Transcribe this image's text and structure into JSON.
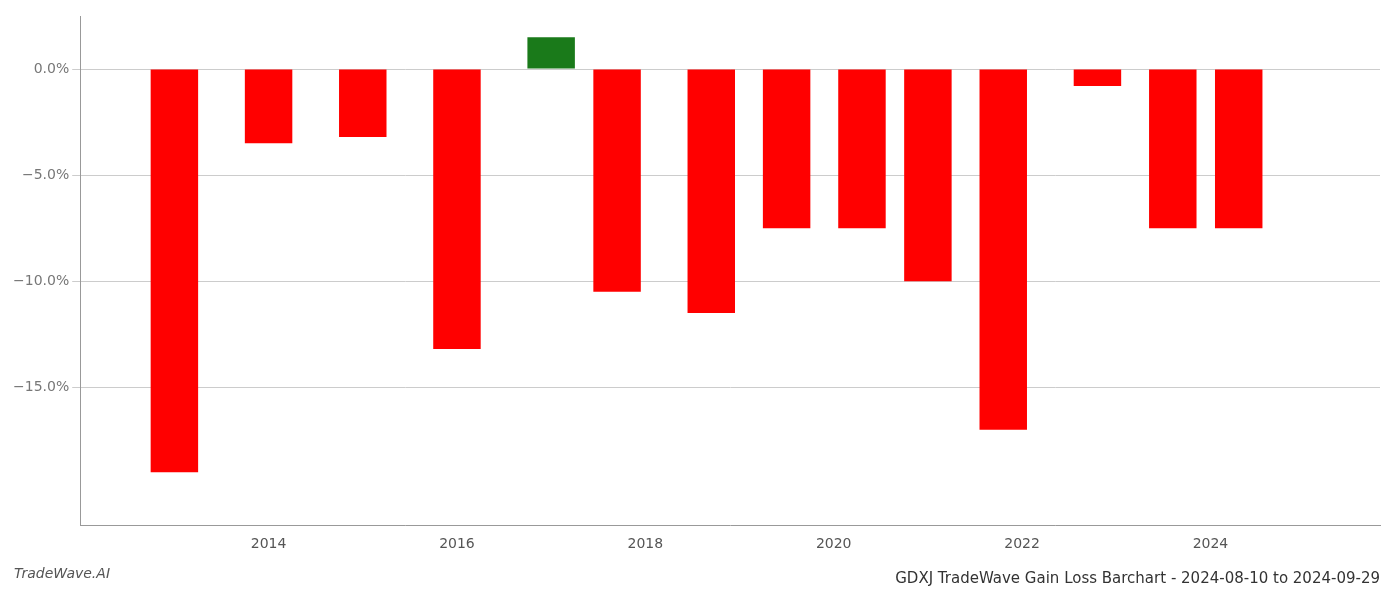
{
  "chart_data": {
    "type": "bar",
    "title": "GDXJ TradeWave Gain Loss Barchart - 2024-08-10 to 2024-09-29",
    "annotations": [
      "TradeWave.AI"
    ],
    "x": [
      2013,
      2014,
      2015,
      2016,
      2017,
      2017.7,
      2018.7,
      2019.5,
      2020.3,
      2021,
      2021.8,
      2022.8,
      2023.6,
      2024.3
    ],
    "values": [
      -19.0,
      -3.5,
      -3.2,
      -13.2,
      1.5,
      -10.5,
      -11.5,
      -7.5,
      -7.5,
      -10.0,
      -17.0,
      -0.8,
      -7.5,
      -7.5
    ],
    "colors": [
      "#ff0000",
      "#ff0000",
      "#ff0000",
      "#ff0000",
      "#1a7a1a",
      "#ff0000",
      "#ff0000",
      "#ff0000",
      "#ff0000",
      "#ff0000",
      "#ff0000",
      "#ff0000",
      "#ff0000",
      "#ff0000"
    ],
    "xlim": [
      2012.0,
      2025.8
    ],
    "xticks": [
      2014,
      2016,
      2018,
      2020,
      2022,
      2024
    ],
    "ylim": [
      -21.5,
      2.5
    ],
    "yticks": [
      {
        "value": 0.0,
        "label": "0.0%"
      },
      {
        "value": -5.0,
        "label": "−5.0%"
      },
      {
        "value": -10.0,
        "label": "−10.0%"
      },
      {
        "value": -15.0,
        "label": "−15.0%"
      }
    ],
    "grid": true
  }
}
